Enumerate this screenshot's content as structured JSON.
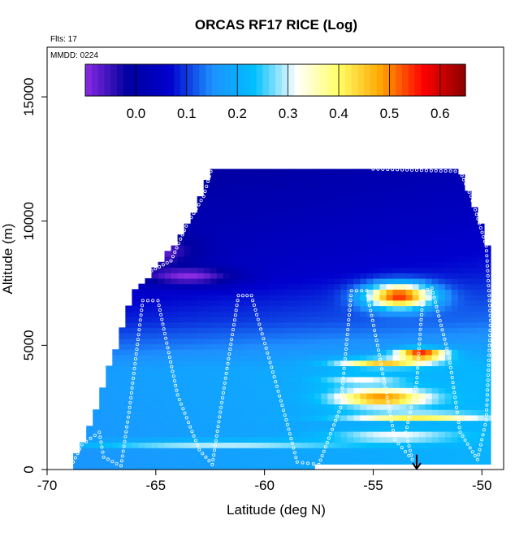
{
  "chart_data": {
    "type": "heatmap",
    "title": "ORCAS RF17 RICE (Log)",
    "annotations": {
      "flights": "Flts: 17",
      "date": "MMDD: 0224"
    },
    "xlabel": "Latitude (deg N)",
    "ylabel": "Altitude (m)",
    "xlim": [
      -70,
      -49
    ],
    "ylim": [
      0,
      17000
    ],
    "x_ticks": [
      -70,
      -65,
      -60,
      -55,
      -50
    ],
    "x_tick_labels": [
      "-70",
      "-65",
      "-60",
      "-55",
      "-50"
    ],
    "y_ticks": [
      0,
      5000,
      10000,
      15000
    ],
    "y_tick_labels": [
      "0",
      "5000",
      "10000",
      "15000"
    ],
    "colorbar": {
      "range": [
        -0.1,
        0.65
      ],
      "ticks": [
        0.0,
        0.1,
        0.2,
        0.3,
        0.4,
        0.5,
        0.6
      ],
      "tick_labels": [
        "0.0",
        "0.1",
        "0.2",
        "0.3",
        "0.4",
        "0.5",
        "0.6"
      ],
      "colors": [
        "#8a2be2",
        "#0000a0",
        "#0000cd",
        "#1e90ff",
        "#00bfff",
        "#ffffff",
        "#ffff66",
        "#ffa500",
        "#ff0000",
        "#8b0000"
      ]
    },
    "grid": {
      "lat_start": -68.8,
      "lat_end": -49.6,
      "lat_step": 0.3,
      "alt_start": 0,
      "alt_end": 12200,
      "alt_step": 220
    },
    "coverage_top": [
      [
        -68.8,
        400
      ],
      [
        -68,
        1800
      ],
      [
        -67,
        4500
      ],
      [
        -66,
        7200
      ],
      [
        -65,
        8100
      ],
      [
        -64,
        9300
      ],
      [
        -63,
        10800
      ],
      [
        -62.4,
        12200
      ],
      [
        -55.2,
        12200
      ],
      [
        -55,
        12000
      ],
      [
        -51,
        12000
      ],
      [
        -50.5,
        11000
      ],
      [
        -49.6,
        8600
      ]
    ],
    "coverage_bottom": [
      [
        -68.8,
        0
      ],
      [
        -57.9,
        0
      ],
      [
        -57.6,
        200
      ],
      [
        -50.0,
        200
      ],
      [
        -49.6,
        400
      ]
    ],
    "background_levels": [
      [
        0,
        0.16
      ],
      [
        4000,
        0.17
      ],
      [
        6000,
        0.08
      ],
      [
        8000,
        0.03
      ],
      [
        10000,
        0.0
      ],
      [
        12200,
        -0.03
      ]
    ],
    "hotspots": [
      {
        "lat": -53.8,
        "alt": 7000,
        "value": 0.55,
        "lat_width": 2.2,
        "alt_width": 700
      },
      {
        "lat": -52.8,
        "alt": 4650,
        "value": 0.6,
        "lat_width": 1.6,
        "alt_width": 300
      },
      {
        "lat": -54.5,
        "alt": 4300,
        "value": 0.45,
        "lat_width": 3.0,
        "alt_width": 250
      },
      {
        "lat": -54.6,
        "alt": 2900,
        "value": 0.5,
        "lat_width": 3.0,
        "alt_width": 500
      },
      {
        "lat": -53.0,
        "alt": 2150,
        "value": 0.45,
        "lat_width": 4.5,
        "alt_width": 200
      },
      {
        "lat": -62.0,
        "alt": 1050,
        "value": 0.32,
        "lat_width": 9.0,
        "alt_width": 180
      },
      {
        "lat": -54.0,
        "alt": 1350,
        "value": 0.33,
        "lat_width": 4.0,
        "alt_width": 300
      },
      {
        "lat": -55.5,
        "alt": 3600,
        "value": 0.32,
        "lat_width": 2.5,
        "alt_width": 300
      },
      {
        "lat": -66.0,
        "alt": 8800,
        "value": -0.12,
        "lat_width": 3.5,
        "alt_width": 900
      },
      {
        "lat": -63.5,
        "alt": 7800,
        "value": -0.1,
        "lat_width": 3.0,
        "alt_width": 500
      }
    ],
    "flight_track": [
      [
        -68.8,
        300
      ],
      [
        -68.4,
        1000
      ],
      [
        -67.6,
        1500
      ],
      [
        -67.4,
        500
      ],
      [
        -66.6,
        150
      ],
      [
        -66.2,
        2500
      ],
      [
        -65.6,
        6800
      ],
      [
        -64.9,
        6800
      ],
      [
        -64.0,
        3000
      ],
      [
        -63.0,
        800
      ],
      [
        -62.4,
        200
      ],
      [
        -62.0,
        2500
      ],
      [
        -61.2,
        7000
      ],
      [
        -60.6,
        7000
      ],
      [
        -59.0,
        2000
      ],
      [
        -58.5,
        300
      ],
      [
        -57.5,
        200
      ],
      [
        -56.5,
        2500
      ],
      [
        -56.0,
        7200
      ],
      [
        -55.3,
        7200
      ],
      [
        -54.8,
        5000
      ],
      [
        -54.0,
        1200
      ],
      [
        -53.2,
        400
      ],
      [
        -53.5,
        1500
      ],
      [
        -53.0,
        3500
      ],
      [
        -52.7,
        7200
      ],
      [
        -52.3,
        7300
      ],
      [
        -51.5,
        4500
      ],
      [
        -51.0,
        1500
      ],
      [
        -50.2,
        400
      ],
      [
        -49.8,
        2000
      ],
      [
        -49.6,
        6000
      ],
      [
        -49.8,
        9000
      ],
      [
        -50.5,
        11000
      ],
      [
        -51.0,
        12000
      ],
      [
        -55.0,
        12100
      ],
      [
        -55.2,
        12200
      ],
      [
        -62.4,
        12200
      ],
      [
        -62.8,
        11000
      ],
      [
        -63.6,
        9800
      ],
      [
        -64.3,
        8400
      ],
      [
        -65.2,
        8000
      ],
      [
        -66.0,
        8000
      ]
    ],
    "arrow_marker": {
      "lat": -53.0,
      "alt_from": 600,
      "alt_to": 0
    }
  }
}
